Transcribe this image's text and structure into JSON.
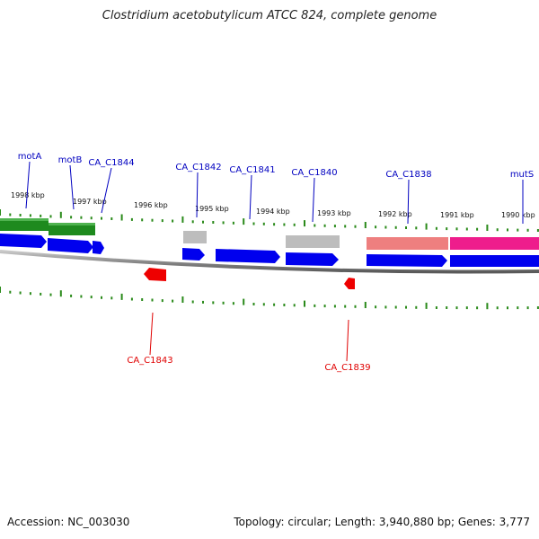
{
  "title": "Clostridium acetobutylicum ATCC 824, complete genome",
  "accession": "Accession: NC_003030",
  "stats": "Topology: circular; Length: 3,940,880 bp; Genes: 3,777",
  "kbp_labels": [
    "1998 kbp",
    "1997 kbp",
    "1996 kbp",
    "1995 kbp",
    "1994 kbp",
    "1993 kbp",
    "1992 kbp",
    "1991 kbp",
    "1990 kbp"
  ],
  "gene_labels_forward": [
    "motA",
    "motB",
    "CA_C1844",
    "CA_C1842",
    "CA_C1841",
    "CA_C1840",
    "CA_C1838",
    "mutS"
  ],
  "gene_labels_reverse": [
    "CA_C1843",
    "CA_C1839"
  ],
  "colors": {
    "forward_cds": "#0000ee",
    "reverse_cds": "#ee0000",
    "label_forward": "#0000c0",
    "label_reverse": "#e00000",
    "tick": "#2a8a1a",
    "backbone": "#888888",
    "feature_green": "#1e8a1e",
    "feature_gray": "#bdbdbd",
    "feature_salmon": "#ee7f7f",
    "feature_pink": "#ee1d8c"
  }
}
